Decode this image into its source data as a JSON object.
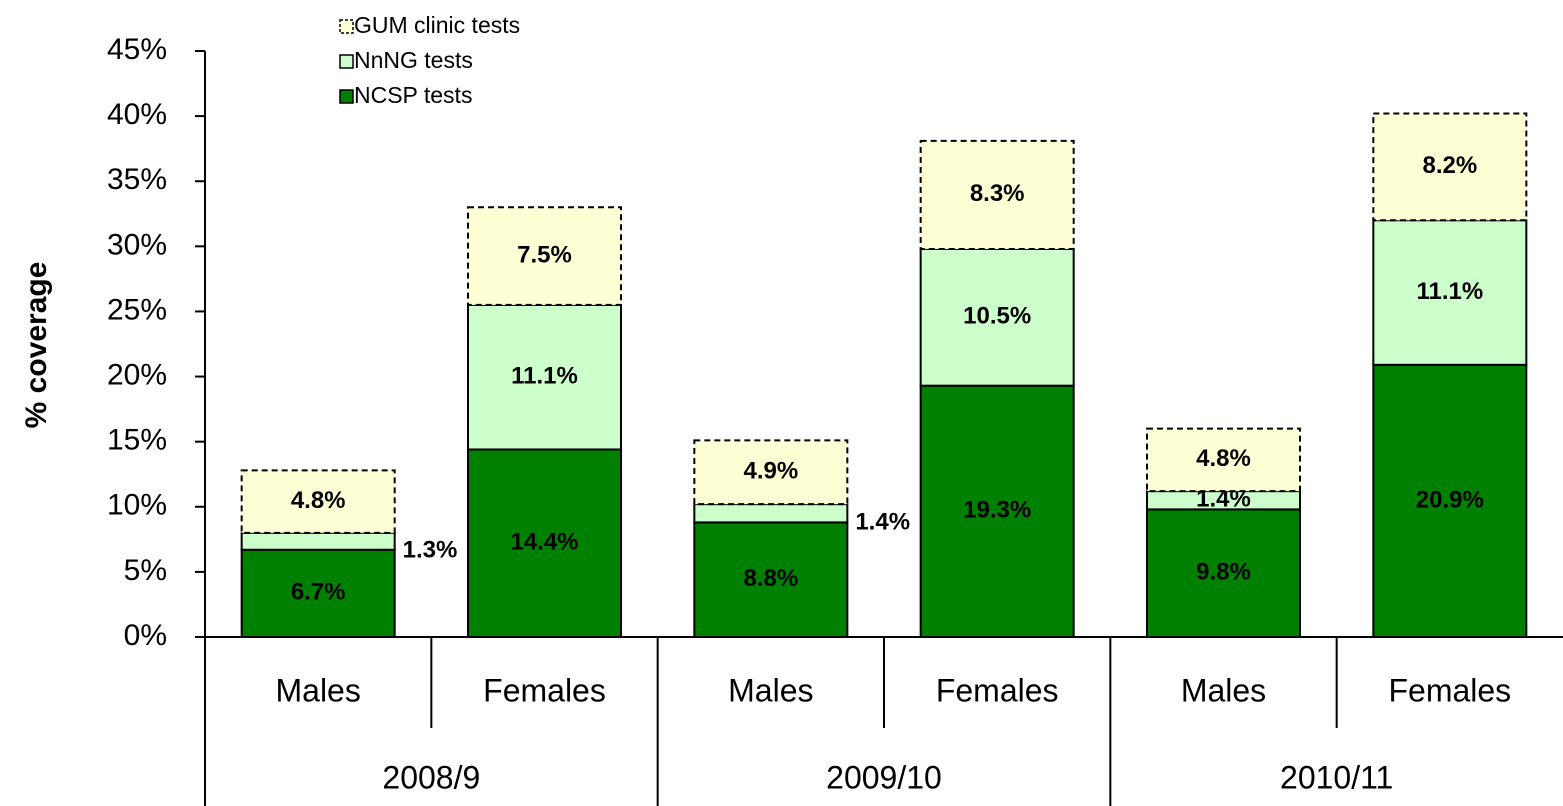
{
  "chart_data": {
    "type": "stacked_bar",
    "y_label": "% coverage",
    "categories": [
      "Males",
      "Females",
      "Males",
      "Females",
      "Males",
      "Females"
    ],
    "groups": [
      "2008/9",
      "2009/10",
      "2010/11"
    ],
    "series": [
      {
        "name": "NCSP tests",
        "color": "#008000",
        "values": [
          6.7,
          14.4,
          8.8,
          19.3,
          9.8,
          20.9
        ],
        "value_labels": [
          "6.7%",
          "14.4%",
          "8.8%",
          "19.3%",
          "9.8%",
          "20.9%"
        ]
      },
      {
        "name": "NnNG tests",
        "color": "#ccffcc",
        "values": [
          1.3,
          11.1,
          1.4,
          10.5,
          1.4,
          11.1
        ],
        "value_labels": [
          "1.3%",
          "11.1%",
          "1.4%",
          "10.5%",
          "1.4%",
          "11.1%"
        ]
      },
      {
        "name": "GUM clinic tests",
        "color": "#ffffd5",
        "dashed": true,
        "values": [
          4.8,
          7.5,
          4.9,
          8.3,
          4.8,
          8.2
        ],
        "value_labels": [
          "4.8%",
          "7.5%",
          "4.9%",
          "8.3%",
          "4.8%",
          "8.2%"
        ]
      }
    ],
    "ylim": [
      0,
      45
    ],
    "yticks": [
      {
        "value": 0,
        "label": "0%"
      },
      {
        "value": 5,
        "label": "5%"
      },
      {
        "value": 10,
        "label": "10%"
      },
      {
        "value": 15,
        "label": "15%"
      },
      {
        "value": 20,
        "label": "20%"
      },
      {
        "value": 25,
        "label": "25%"
      },
      {
        "value": 30,
        "label": "30%"
      },
      {
        "value": 35,
        "label": "35%"
      },
      {
        "value": 40,
        "label": "40%"
      },
      {
        "value": 45,
        "label": "45%"
      }
    ],
    "legend": "top-left"
  }
}
